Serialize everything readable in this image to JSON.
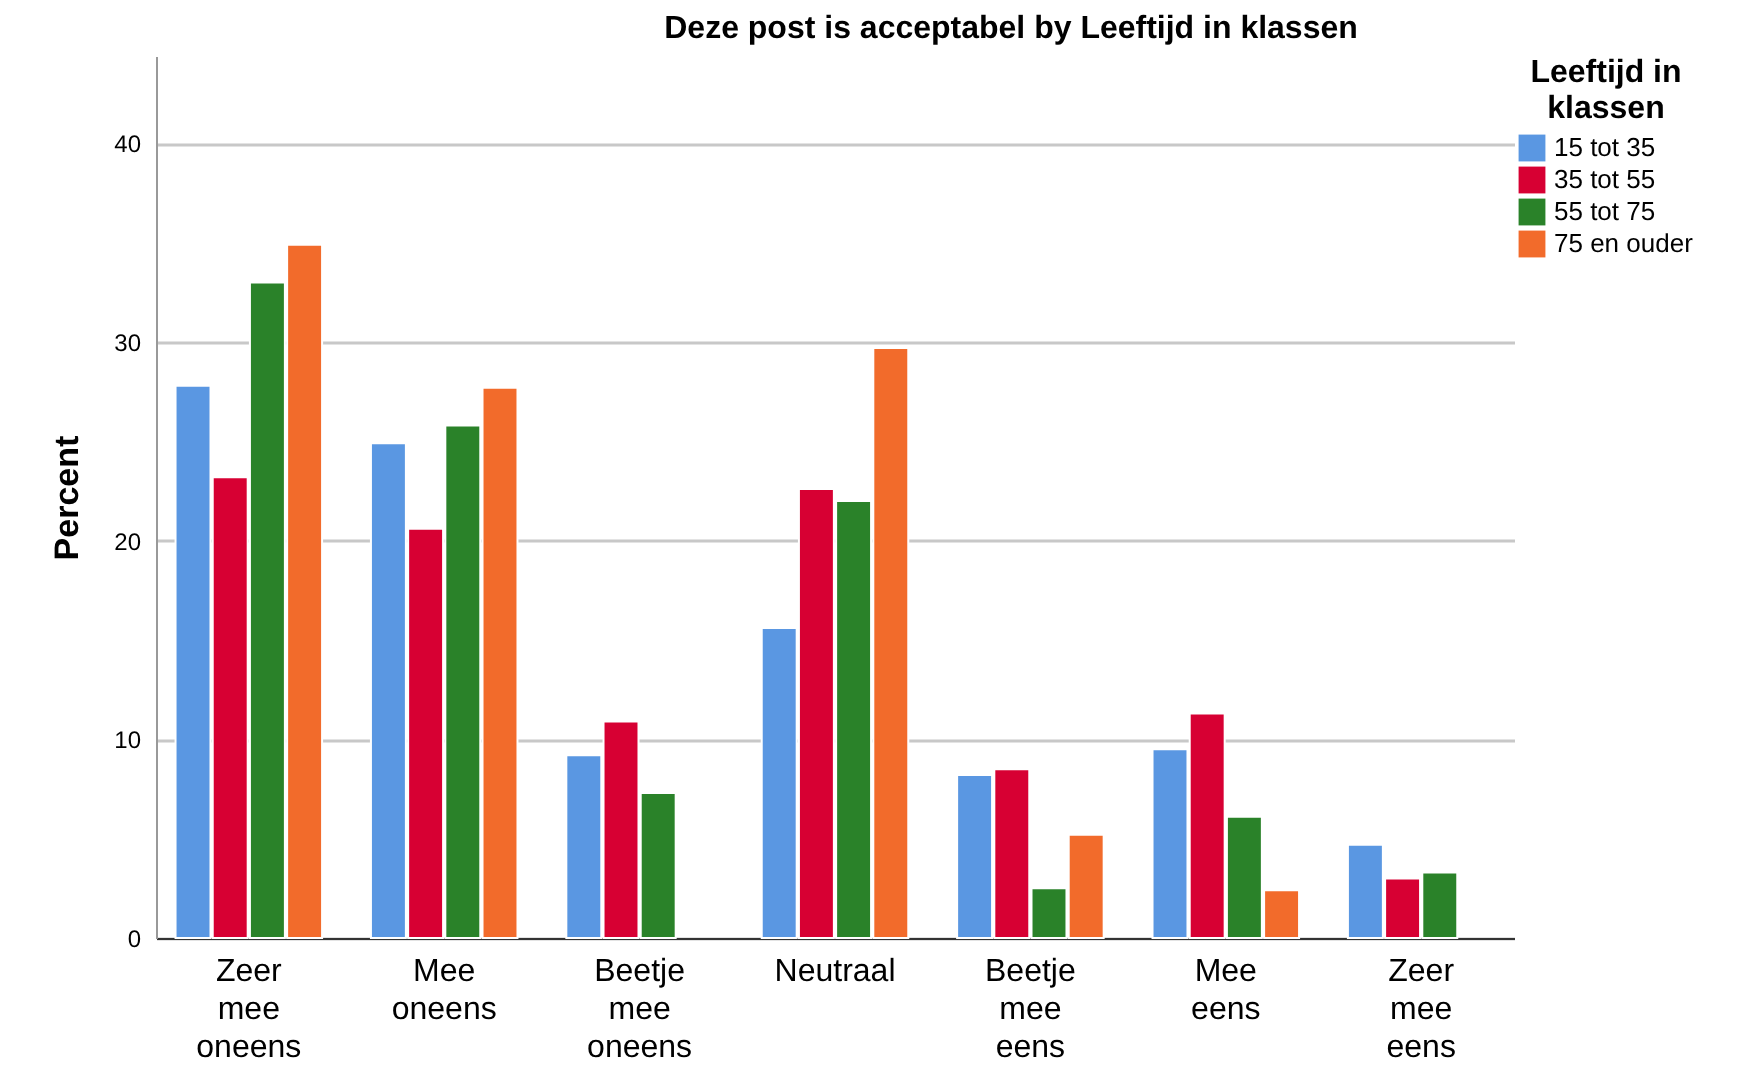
{
  "chart_data": {
    "type": "bar",
    "title": "Deze post is acceptabel by Leeftijd in klassen",
    "ylabel": "Percent",
    "legend_title": "Leeftijd in klassen",
    "categories": [
      "Zeer mee oneens",
      "Mee oneens",
      "Beetje mee oneens",
      "Neutraal",
      "Beetje mee eens",
      "Mee eens",
      "Zeer mee eens"
    ],
    "series": [
      {
        "name": "15 tot 35",
        "color": "#5a97e2",
        "values": [
          27.8,
          24.9,
          9.2,
          15.6,
          8.2,
          9.5,
          4.7
        ]
      },
      {
        "name": "35 tot 55",
        "color": "#d70033",
        "values": [
          23.2,
          20.6,
          10.9,
          22.6,
          8.5,
          11.3,
          3.0
        ]
      },
      {
        "name": "55 tot 75",
        "color": "#2a8229",
        "values": [
          33.0,
          25.8,
          7.3,
          22.0,
          2.5,
          6.1,
          3.3
        ]
      },
      {
        "name": "75 en ouder",
        "color": "#f26b2b",
        "values": [
          34.9,
          27.7,
          null,
          29.7,
          5.2,
          2.4,
          null
        ]
      }
    ],
    "ylim": [
      0,
      44.4
    ],
    "yticks": [
      0,
      10,
      20,
      30,
      40
    ],
    "grid": "y",
    "legend": "top right"
  }
}
